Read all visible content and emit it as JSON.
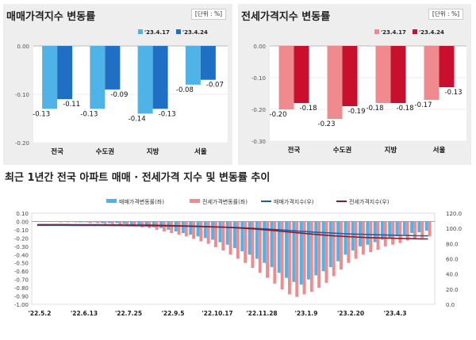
{
  "chart_data": [
    {
      "type": "bar",
      "title": "매매가격지수 변동률",
      "unit": "[단위 : %]",
      "categories": [
        "전국",
        "수도권",
        "지방",
        "서울"
      ],
      "series": [
        {
          "name": "'23.4.17",
          "values": [
            -0.13,
            -0.13,
            -0.14,
            -0.08
          ],
          "color": "#4fb3e8"
        },
        {
          "name": "'23.4.24",
          "values": [
            -0.11,
            -0.09,
            -0.13,
            -0.07
          ],
          "color": "#1f6fc5"
        }
      ],
      "ylim": [
        -0.2,
        0.0
      ],
      "yticks": [
        "0.00",
        "-0.10",
        "-0.20"
      ],
      "ytick_values": [
        0.0,
        -0.1,
        -0.2
      ]
    },
    {
      "type": "bar",
      "title": "전세가격지수 변동률",
      "unit": "[단위 : %]",
      "categories": [
        "전국",
        "수도권",
        "지방",
        "서울"
      ],
      "series": [
        {
          "name": "'23.4.17",
          "values": [
            -0.2,
            -0.23,
            -0.18,
            -0.17
          ],
          "color": "#f08a8e"
        },
        {
          "name": "'23.4.24",
          "values": [
            -0.18,
            -0.19,
            -0.18,
            -0.13
          ],
          "color": "#c8102e"
        }
      ],
      "ylim": [
        -0.3,
        0.0
      ],
      "yticks": [
        "0.00",
        "-0.10",
        "-0.20",
        "-0.30"
      ],
      "ytick_values": [
        0.0,
        -0.1,
        -0.2,
        -0.3
      ]
    },
    {
      "type": "bar",
      "title": "최근 1년간 전국 아파트 매매 · 전세가격 지수 및 변동률 추이",
      "legend": [
        "매매가격변동률(좌)",
        "전세가격변동률(좌)",
        "매매가격지수(우)",
        "전세가격지수(우)"
      ],
      "x_ticks": [
        "'22.5.2",
        "'22.6.13",
        "'22.7.25",
        "'22.9.5",
        "'22.10.17",
        "'22.11.28",
        "'23.1.9",
        "'23.2.20",
        "'23.4.3"
      ],
      "ylim_left": [
        -1.0,
        0.1
      ],
      "ylim_right": [
        0.0,
        120.0
      ],
      "yticks_left": [
        "0.10",
        "0.00",
        "-0.10",
        "-0.20",
        "-0.30",
        "-0.40",
        "-0.50",
        "-0.60",
        "-0.70",
        "-0.80",
        "-0.90",
        "-1.00"
      ],
      "yticks_left_values": [
        0.1,
        0.0,
        -0.1,
        -0.2,
        -0.3,
        -0.4,
        -0.5,
        -0.6,
        -0.7,
        -0.8,
        -0.9,
        -1.0
      ],
      "yticks_right": [
        "120.0",
        "100.0",
        "80.0",
        "60.0",
        "40.0",
        "20.0",
        "0.0"
      ],
      "yticks_right_values": [
        120,
        100,
        80,
        60,
        40,
        20,
        0
      ],
      "sale_rate": [
        0.0,
        0.0,
        0.0,
        0.0,
        0.0,
        0.0,
        -0.01,
        -0.01,
        -0.01,
        -0.02,
        -0.02,
        -0.02,
        -0.03,
        -0.04,
        -0.05,
        -0.06,
        -0.07,
        -0.08,
        -0.1,
        -0.12,
        -0.14,
        -0.16,
        -0.18,
        -0.2,
        -0.22,
        -0.25,
        -0.28,
        -0.32,
        -0.36,
        -0.4,
        -0.45,
        -0.5,
        -0.55,
        -0.62,
        -0.68,
        -0.73,
        -0.76,
        -0.7,
        -0.65,
        -0.6,
        -0.55,
        -0.48,
        -0.4,
        -0.35,
        -0.3,
        -0.28,
        -0.25,
        -0.22,
        -0.2,
        -0.18,
        -0.16,
        -0.14,
        -0.13,
        -0.11
      ],
      "jeonse_rate": [
        0.0,
        0.0,
        0.0,
        -0.01,
        -0.01,
        -0.01,
        -0.01,
        -0.02,
        -0.02,
        -0.03,
        -0.03,
        -0.04,
        -0.05,
        -0.06,
        -0.07,
        -0.08,
        -0.1,
        -0.12,
        -0.14,
        -0.16,
        -0.18,
        -0.21,
        -0.24,
        -0.27,
        -0.31,
        -0.35,
        -0.4,
        -0.45,
        -0.5,
        -0.56,
        -0.62,
        -0.68,
        -0.75,
        -0.82,
        -0.88,
        -0.91,
        -0.88,
        -0.85,
        -0.8,
        -0.74,
        -0.66,
        -0.58,
        -0.5,
        -0.45,
        -0.4,
        -0.37,
        -0.34,
        -0.3,
        -0.28,
        -0.26,
        -0.23,
        -0.21,
        -0.2,
        -0.18
      ],
      "sale_index": [
        104.0,
        104.0,
        104.0,
        104.0,
        104.0,
        103.9,
        103.9,
        103.8,
        103.8,
        103.8,
        103.7,
        103.7,
        103.6,
        103.5,
        103.5,
        103.4,
        103.3,
        103.2,
        103.1,
        103.0,
        102.8,
        102.6,
        102.4,
        102.2,
        102.0,
        101.7,
        101.4,
        101.1,
        100.7,
        100.3,
        99.8,
        99.3,
        98.7,
        98.1,
        97.4,
        96.7,
        96.0,
        95.4,
        94.8,
        94.3,
        93.8,
        93.3,
        92.9,
        92.5,
        92.2,
        91.9,
        91.6,
        91.4,
        91.1,
        90.9,
        90.7,
        90.5,
        90.3,
        90.2
      ],
      "jeonse_index": [
        105.0,
        105.0,
        105.0,
        105.0,
        105.0,
        104.9,
        104.9,
        104.8,
        104.8,
        104.7,
        104.7,
        104.6,
        104.5,
        104.4,
        104.3,
        104.2,
        104.1,
        103.9,
        103.7,
        103.5,
        103.3,
        103.0,
        102.7,
        102.4,
        102.0,
        101.6,
        101.2,
        100.7,
        100.1,
        99.5,
        98.8,
        98.0,
        97.2,
        96.3,
        95.4,
        94.5,
        93.6,
        92.7,
        91.9,
        91.1,
        90.4,
        89.8,
        89.2,
        88.7,
        88.3,
        87.9,
        87.6,
        87.3,
        87.0,
        86.8,
        86.6,
        86.4,
        86.2,
        86.1
      ]
    }
  ]
}
